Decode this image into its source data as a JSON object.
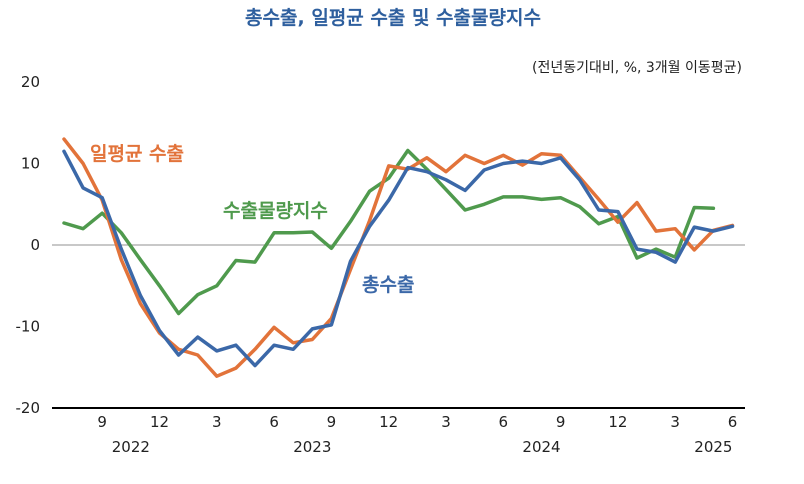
{
  "chart_data": {
    "type": "line",
    "title": "총수출, 일평균 수출 및 수출물량지수",
    "subtitle": "(전년동기대비, %, 3개월 이동평균)",
    "ylim": [
      -20,
      20
    ],
    "yticks": [
      "20",
      "10",
      "0",
      "-10",
      "-20"
    ],
    "x": [
      "2022-07",
      "2022-08",
      "2022-09",
      "2022-10",
      "2022-11",
      "2022-12",
      "2023-01",
      "2023-02",
      "2023-03",
      "2023-04",
      "2023-05",
      "2023-06",
      "2023-07",
      "2023-08",
      "2023-09",
      "2023-10",
      "2023-11",
      "2023-12",
      "2024-01",
      "2024-02",
      "2024-03",
      "2024-04",
      "2024-05",
      "2024-06",
      "2024-07",
      "2024-08",
      "2024-09",
      "2024-10",
      "2024-11",
      "2024-12",
      "2025-01",
      "2025-02",
      "2025-03",
      "2025-04",
      "2025-05",
      "2025-06"
    ],
    "month_labels": [
      "9",
      "12",
      "3",
      "6",
      "9",
      "12",
      "3",
      "6",
      "9",
      "12",
      "3",
      "6"
    ],
    "year_labels": [
      "2022",
      "2023",
      "2024",
      "2025"
    ],
    "series": [
      {
        "name": "총수출",
        "color": "#3b68a8",
        "values": [
          11.5,
          7.0,
          5.8,
          -0.5,
          -6.2,
          -10.5,
          -13.5,
          -11.3,
          -13.0,
          -12.3,
          -14.8,
          -12.3,
          -12.8,
          -10.3,
          -9.8,
          -2.0,
          2.3,
          5.5,
          9.5,
          9.0,
          8.0,
          6.7,
          9.2,
          10.0,
          10.3,
          10.0,
          10.7,
          8.0,
          4.3,
          4.1,
          -0.5,
          -0.9,
          -2.1,
          2.2,
          1.7,
          2.3
        ]
      },
      {
        "name": "일평균 수출",
        "color": "#e2733a",
        "values": [
          13.0,
          10.0,
          5.5,
          -1.8,
          -7.2,
          -10.8,
          -12.8,
          -13.5,
          -16.1,
          -15.1,
          -12.8,
          -10.1,
          -12.0,
          -11.6,
          -9.0,
          -3.0,
          3.0,
          9.7,
          9.3,
          10.7,
          9.0,
          11.0,
          10.0,
          11.0,
          9.8,
          11.2,
          11.0,
          8.3,
          5.6,
          2.8,
          5.2,
          1.7,
          2.0,
          -0.6,
          1.8,
          2.4
        ]
      },
      {
        "name": "수출물량지수",
        "color": "#4f9a4d",
        "values": [
          2.7,
          2.0,
          3.9,
          1.5,
          -1.8,
          -5.0,
          -8.4,
          -6.1,
          -5.0,
          -1.9,
          -2.1,
          1.5,
          1.5,
          1.6,
          -0.4,
          2.9,
          6.6,
          8.2,
          11.6,
          9.3,
          6.8,
          4.3,
          5.0,
          5.9,
          5.9,
          5.6,
          5.8,
          4.7,
          2.6,
          3.5,
          -1.6,
          -0.5,
          -1.5,
          4.6,
          4.5,
          null
        ]
      }
    ],
    "annotations": [
      "일평균 수출",
      "수출물량지수",
      "총수출"
    ]
  }
}
